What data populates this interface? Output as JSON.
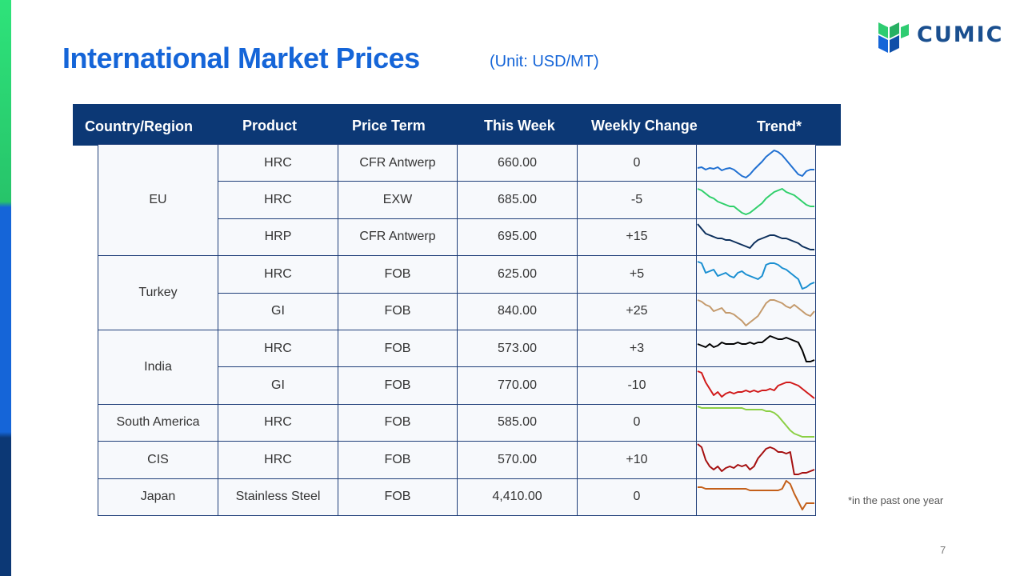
{
  "slide": {
    "title": "International Market Prices",
    "unit": "(Unit: USD/MT)",
    "logo_text": "CUMIC",
    "footnote": "*in the past one year",
    "page_number": "7"
  },
  "table": {
    "headers": [
      "Country/Region",
      "Product",
      "Price Term",
      "This Week",
      "Weekly Change",
      "Trend*"
    ],
    "groups": [
      {
        "country": "EU",
        "rows": [
          {
            "product": "HRC",
            "term": "CFR Antwerp",
            "price": "660.00",
            "change": "0",
            "trend_color": "#1f6fd1"
          },
          {
            "product": "HRC",
            "term": "EXW",
            "price": "685.00",
            "change": "-5",
            "trend_color": "#2fcf6a"
          },
          {
            "product": "HRP",
            "term": "CFR Antwerp",
            "price": "695.00",
            "change": "+15",
            "trend_color": "#0c2f5c"
          }
        ]
      },
      {
        "country": "Turkey",
        "rows": [
          {
            "product": "HRC",
            "term": "FOB",
            "price": "625.00",
            "change": "+5",
            "trend_color": "#1a8fd1"
          },
          {
            "product": "GI",
            "term": "FOB",
            "price": "840.00",
            "change": "+25",
            "trend_color": "#c49a6c"
          }
        ]
      },
      {
        "country": "India",
        "rows": [
          {
            "product": "HRC",
            "term": "FOB",
            "price": "573.00",
            "change": "+3",
            "trend_color": "#000000"
          },
          {
            "product": "GI",
            "term": "FOB",
            "price": "770.00",
            "change": "-10",
            "trend_color": "#d11a1a"
          }
        ]
      },
      {
        "country": "South America",
        "rows": [
          {
            "product": "HRC",
            "term": "FOB",
            "price": "585.00",
            "change": "0",
            "trend_color": "#8bcf44"
          }
        ]
      },
      {
        "country": "CIS",
        "rows": [
          {
            "product": "HRC",
            "term": "FOB",
            "price": "570.00",
            "change": "+10",
            "trend_color": "#a50f0f"
          }
        ]
      },
      {
        "country": "Japan",
        "rows": [
          {
            "product": "Stainless Steel",
            "term": "FOB",
            "price": "4,410.00",
            "change": "0",
            "trend_color": "#c4601a"
          }
        ]
      }
    ]
  },
  "colors": {
    "title": "#1565d8",
    "header_bg": "#0c3875",
    "accent_green": "#2ecc71",
    "accent_blue": "#1565d8",
    "positive": "#21a045",
    "negative": "#d61f1f",
    "zero": "#1565d8"
  }
}
